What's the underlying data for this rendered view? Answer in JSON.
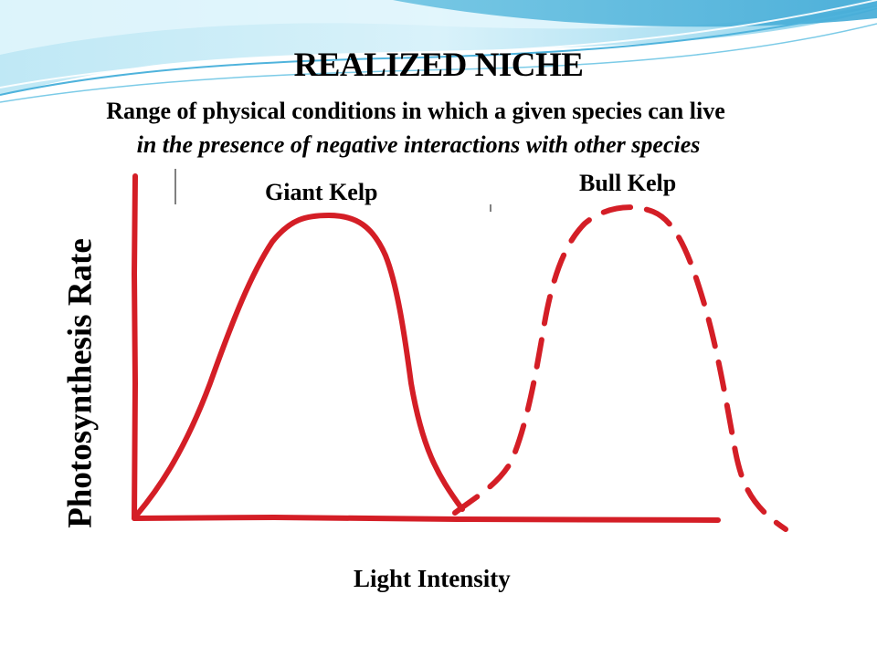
{
  "slide": {
    "title": "REALIZED NICHE",
    "subtitle_line1": "Range of physical conditions in which a given species can live",
    "subtitle_line2": "in the presence of negative interactions with other species"
  },
  "diagram": {
    "curve_labels": {
      "giant_kelp": "Giant Kelp",
      "bull_kelp": "Bull Kelp"
    },
    "x_axis_label": "Light Intensity",
    "y_axis_label": "Photosynthesis Rate",
    "colors": {
      "curves": "#d41e26",
      "banner_blue": "#a8dff0",
      "banner_dark": "#5fb9dc"
    },
    "line_styles": {
      "giant_kelp": "solid",
      "bull_kelp": "dashed"
    }
  }
}
